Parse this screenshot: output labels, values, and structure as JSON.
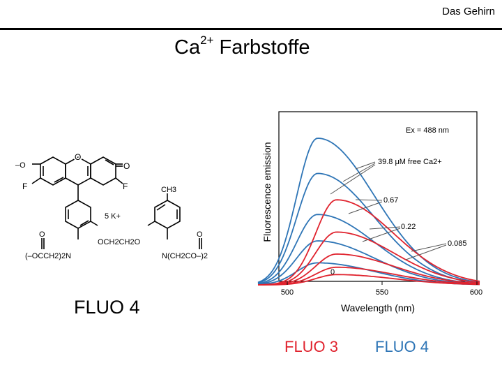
{
  "header": {
    "label": "Das Gehirn"
  },
  "title": {
    "prefix": "Ca",
    "superscript": "2+",
    "suffix": " Farbstoffe"
  },
  "structure": {
    "name": "FLUO 4",
    "labels": {
      "o_minus": "–O",
      "o_right": "O",
      "f_left": "F",
      "f_right": "F",
      "ring_o": "O",
      "ch3": "CH3",
      "k": "5 K+",
      "linker": "OCH2CH2O",
      "n_left": "(–OCCH2)2N",
      "n_right": "N(CH2CO–)2",
      "o_left_sub": "O",
      "o_right_sub": "O"
    }
  },
  "chart_data": {
    "type": "line",
    "xlabel": "Wavelength (nm)",
    "ylabel": "Fluorescence emission",
    "xlim": [
      500,
      600
    ],
    "xticks": [
      "500",
      "550",
      "600"
    ],
    "annotation": "Ex = 488 nm",
    "conc_labels": [
      "39.8 μM free Ca2+",
      "0.67",
      "0.22",
      "0.085",
      "0"
    ],
    "series": [
      {
        "dye": "FLUO 4",
        "color": "#2e75b6",
        "peak_x": 516,
        "peak": 1.0
      },
      {
        "dye": "FLUO 4",
        "color": "#2e75b6",
        "peak_x": 516,
        "peak": 0.76
      },
      {
        "dye": "FLUO 4",
        "color": "#2e75b6",
        "peak_x": 516,
        "peak": 0.48
      },
      {
        "dye": "FLUO 4",
        "color": "#2e75b6",
        "peak_x": 516,
        "peak": 0.3
      },
      {
        "dye": "FLUO 4",
        "color": "#2e75b6",
        "peak_x": 516,
        "peak": 0.15
      },
      {
        "dye": "FLUO 3",
        "color": "#e0232e",
        "peak_x": 526,
        "peak": 0.58
      },
      {
        "dye": "FLUO 3",
        "color": "#e0232e",
        "peak_x": 526,
        "peak": 0.36
      },
      {
        "dye": "FLUO 3",
        "color": "#e0232e",
        "peak_x": 526,
        "peak": 0.21
      },
      {
        "dye": "FLUO 3",
        "color": "#e0232e",
        "peak_x": 526,
        "peak": 0.12
      },
      {
        "dye": "FLUO 3",
        "color": "#e0232e",
        "peak_x": 526,
        "peak": 0.07
      }
    ]
  },
  "legend": {
    "fluo3": {
      "label": "FLUO 3",
      "color": "#e0232e"
    },
    "fluo4": {
      "label": "FLUO 4",
      "color": "#2e75b6"
    }
  }
}
